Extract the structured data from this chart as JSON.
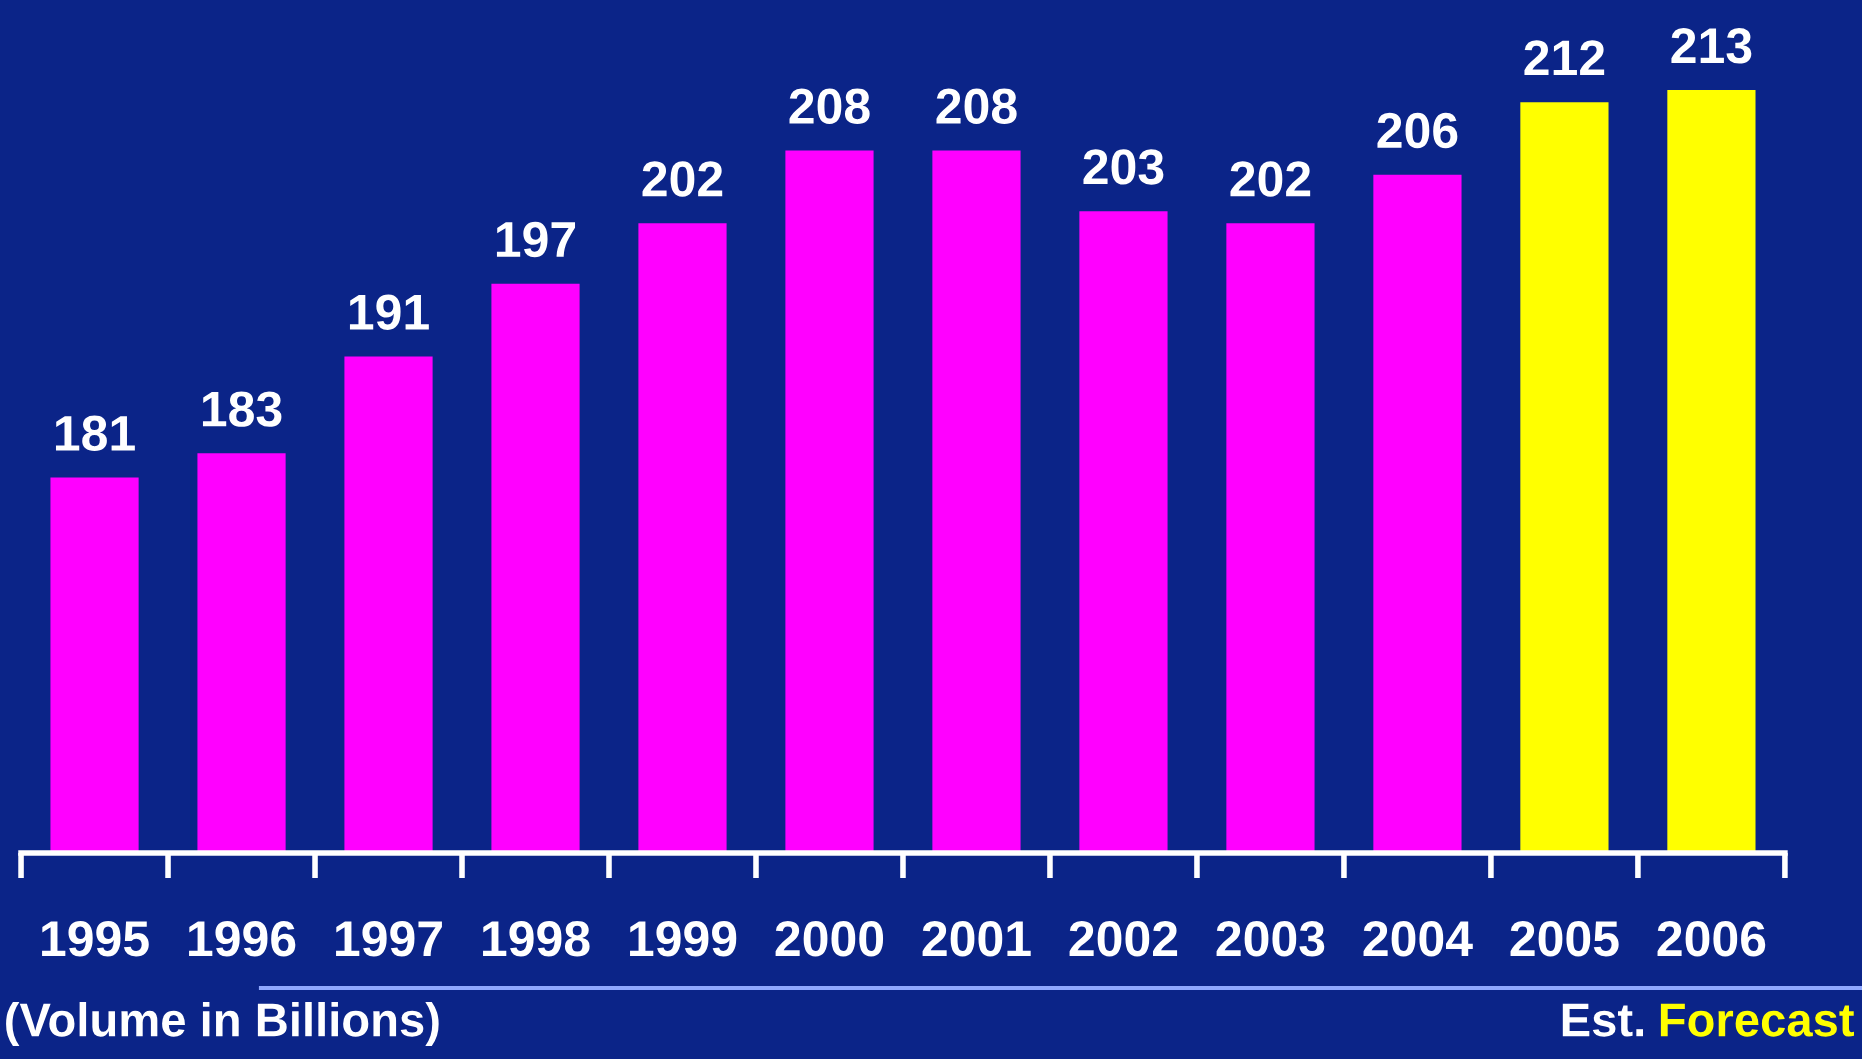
{
  "chart_data": {
    "type": "bar",
    "categories": [
      "1995",
      "1996",
      "1997",
      "1998",
      "1999",
      "2000",
      "2001",
      "2002",
      "2003",
      "2004",
      "2005",
      "2006"
    ],
    "values": [
      181,
      183,
      191,
      197,
      202,
      208,
      208,
      203,
      202,
      206,
      212,
      213
    ],
    "colors": [
      "#ff00ff",
      "#ff00ff",
      "#ff00ff",
      "#ff00ff",
      "#ff00ff",
      "#ff00ff",
      "#ff00ff",
      "#ff00ff",
      "#ff00ff",
      "#ff00ff",
      "#ffff00",
      "#ffff00"
    ],
    "ylim": [
      150,
      213
    ],
    "data_labels": true,
    "tick_labels": "x",
    "grid": false,
    "annotations": [
      "(Volume in Billions)",
      "Est.",
      "Forecast"
    ]
  }
}
